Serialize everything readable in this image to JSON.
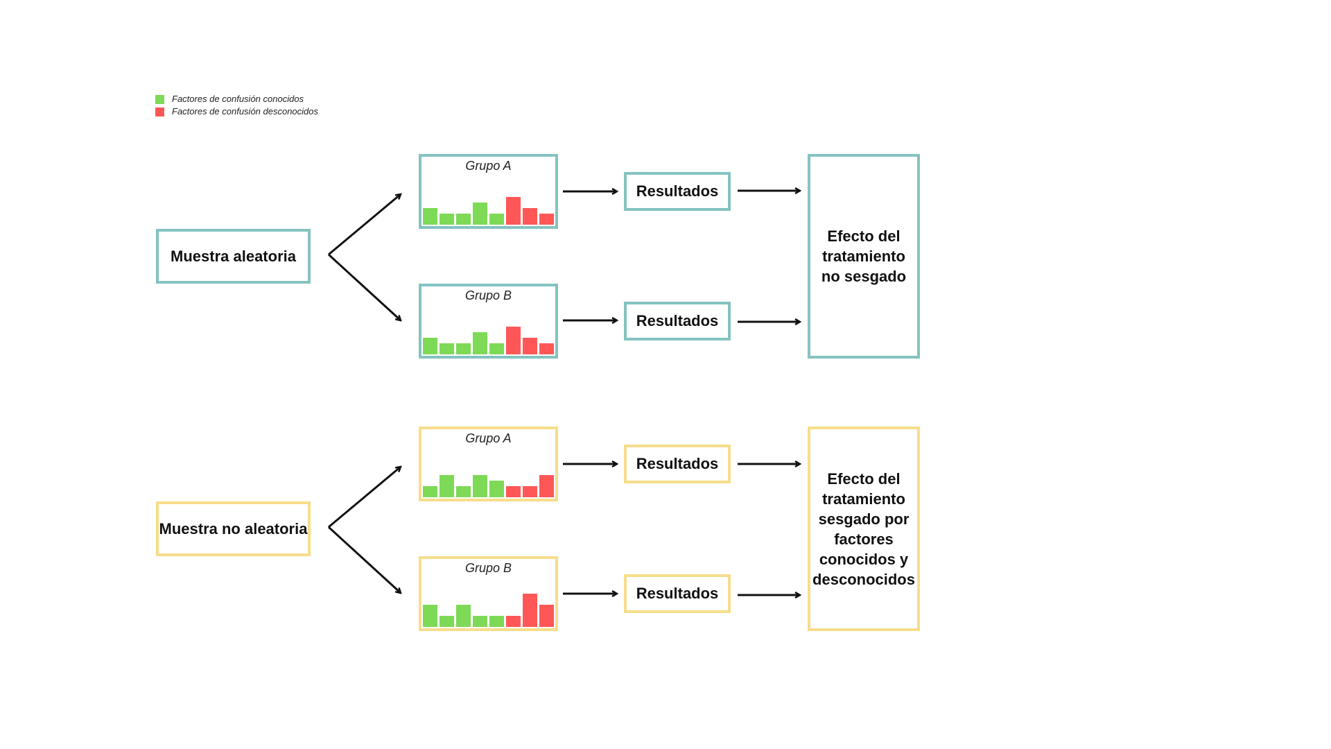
{
  "colors": {
    "known": "#7ed957",
    "unknown": "#ff5757",
    "random_border": "#84c3c0",
    "nonrandom_border": "#f7dd8b"
  },
  "legend": {
    "known_label": "Factores de confusión conocidos",
    "unknown_label": "Factores de confusión desconocidos"
  },
  "random": {
    "sample_label": "Muestra aleatoria",
    "group_a": {
      "title": "Grupo A",
      "known": [
        3,
        2,
        2,
        4,
        2
      ],
      "unknown": [
        5,
        3,
        2
      ]
    },
    "group_b": {
      "title": "Grupo B",
      "known": [
        3,
        2,
        2,
        4,
        2
      ],
      "unknown": [
        5,
        3,
        2
      ]
    },
    "results_a": "Resultados",
    "results_b": "Resultados",
    "effect_label": "Efecto del tratamiento no sesgado"
  },
  "nonrandom": {
    "sample_label": "Muestra no aleatoria",
    "group_a": {
      "title": "Grupo A",
      "known": [
        2,
        4,
        2,
        4,
        3
      ],
      "unknown": [
        2,
        2,
        4
      ]
    },
    "group_b": {
      "title": "Grupo B",
      "known": [
        4,
        2,
        4,
        2,
        2
      ],
      "unknown": [
        2,
        6,
        4
      ]
    },
    "results_a": "Resultados",
    "results_b": "Resultados",
    "effect_label": "Efecto del tratamiento sesgado por factores conocidos y desconocidos"
  }
}
